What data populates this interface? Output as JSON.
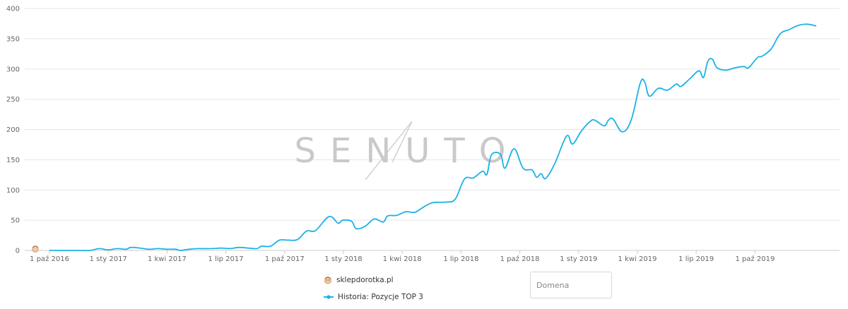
{
  "chart_data": {
    "type": "line",
    "title": "",
    "xlabel": "",
    "ylabel": "",
    "ylim": [
      0,
      400
    ],
    "yticks": [
      0,
      50,
      100,
      150,
      200,
      250,
      300,
      350,
      400
    ],
    "xticks": [
      "1 paź 2016",
      "1 sty 2017",
      "1 kwi 2017",
      "1 lip 2017",
      "1 paź 2017",
      "1 sty 2018",
      "1 kwi 2018",
      "1 lip 2018",
      "1 paź 2018",
      "1 sty 2019",
      "1 kwi 2019",
      "1 lip 2019",
      "1 paź 2019"
    ],
    "xtick_dates": [
      "2016-10-01",
      "2017-01-01",
      "2017-04-01",
      "2017-07-01",
      "2017-10-01",
      "2018-01-01",
      "2018-04-01",
      "2018-07-01",
      "2018-10-01",
      "2019-01-01",
      "2019-04-01",
      "2019-07-01",
      "2019-10-01"
    ],
    "grid": true,
    "legend_placement": "bottom-center",
    "series": [
      {
        "name": "Historia: Pozycje TOP 3",
        "color": "#1ab2e8",
        "points": [
          [
            "2016-10-01",
            0
          ],
          [
            "2016-10-22",
            0
          ],
          [
            "2016-11-12",
            0
          ],
          [
            "2016-12-03",
            0
          ],
          [
            "2016-12-17",
            3
          ],
          [
            "2016-12-31",
            1
          ],
          [
            "2017-01-14",
            3
          ],
          [
            "2017-01-28",
            2
          ],
          [
            "2017-02-04",
            5
          ],
          [
            "2017-02-18",
            4
          ],
          [
            "2017-03-04",
            2
          ],
          [
            "2017-03-18",
            3
          ],
          [
            "2017-04-01",
            2
          ],
          [
            "2017-04-15",
            2
          ],
          [
            "2017-04-22",
            0
          ],
          [
            "2017-05-06",
            2
          ],
          [
            "2017-05-20",
            3
          ],
          [
            "2017-06-10",
            3
          ],
          [
            "2017-06-24",
            4
          ],
          [
            "2017-07-08",
            3
          ],
          [
            "2017-07-22",
            5
          ],
          [
            "2017-08-05",
            4
          ],
          [
            "2017-08-19",
            3
          ],
          [
            "2017-08-26",
            7
          ],
          [
            "2017-09-09",
            7
          ],
          [
            "2017-09-23",
            17
          ],
          [
            "2017-10-07",
            17
          ],
          [
            "2017-10-21",
            18
          ],
          [
            "2017-11-04",
            32
          ],
          [
            "2017-11-18",
            33
          ],
          [
            "2017-12-09",
            56
          ],
          [
            "2017-12-23",
            45
          ],
          [
            "2017-12-30",
            50
          ],
          [
            "2018-01-13",
            48
          ],
          [
            "2018-01-20",
            36
          ],
          [
            "2018-02-03",
            40
          ],
          [
            "2018-02-17",
            52
          ],
          [
            "2018-03-03",
            47
          ],
          [
            "2018-03-10",
            57
          ],
          [
            "2018-03-24",
            58
          ],
          [
            "2018-04-07",
            64
          ],
          [
            "2018-04-21",
            63
          ],
          [
            "2018-05-05",
            72
          ],
          [
            "2018-05-19",
            79
          ],
          [
            "2018-06-09",
            80
          ],
          [
            "2018-06-23",
            85
          ],
          [
            "2018-07-07",
            118
          ],
          [
            "2018-07-21",
            120
          ],
          [
            "2018-08-04",
            131
          ],
          [
            "2018-08-11",
            126
          ],
          [
            "2018-08-18",
            158
          ],
          [
            "2018-09-01",
            159
          ],
          [
            "2018-09-08",
            136
          ],
          [
            "2018-09-22",
            168
          ],
          [
            "2018-10-06",
            136
          ],
          [
            "2018-10-20",
            133
          ],
          [
            "2018-10-27",
            121
          ],
          [
            "2018-11-03",
            127
          ],
          [
            "2018-11-10",
            119
          ],
          [
            "2018-11-24",
            143
          ],
          [
            "2018-12-08",
            180
          ],
          [
            "2018-12-15",
            190
          ],
          [
            "2018-12-22",
            176
          ],
          [
            "2019-01-05",
            198
          ],
          [
            "2019-01-19",
            214
          ],
          [
            "2019-01-26",
            215
          ],
          [
            "2019-02-09",
            206
          ],
          [
            "2019-02-16",
            216
          ],
          [
            "2019-02-23",
            217
          ],
          [
            "2019-03-09",
            196
          ],
          [
            "2019-03-23",
            216
          ],
          [
            "2019-04-06",
            277
          ],
          [
            "2019-04-13",
            278
          ],
          [
            "2019-04-20",
            255
          ],
          [
            "2019-05-04",
            268
          ],
          [
            "2019-05-18",
            265
          ],
          [
            "2019-06-01",
            275
          ],
          [
            "2019-06-08",
            271
          ],
          [
            "2019-06-22",
            284
          ],
          [
            "2019-07-06",
            297
          ],
          [
            "2019-07-13",
            286
          ],
          [
            "2019-07-20",
            313
          ],
          [
            "2019-07-27",
            316
          ],
          [
            "2019-08-03",
            302
          ],
          [
            "2019-08-17",
            298
          ],
          [
            "2019-08-31",
            302
          ],
          [
            "2019-09-14",
            304
          ],
          [
            "2019-09-21",
            302
          ],
          [
            "2019-10-05",
            319
          ],
          [
            "2019-10-12",
            321
          ],
          [
            "2019-10-26",
            333
          ],
          [
            "2019-11-09",
            358
          ],
          [
            "2019-11-23",
            365
          ],
          [
            "2019-12-07",
            372
          ],
          [
            "2019-12-21",
            374
          ],
          [
            "2020-01-04",
            371
          ]
        ]
      }
    ],
    "markers": [
      {
        "name": "sklepdorotka.pl",
        "date": "2016-10-01",
        "value": 0
      }
    ]
  },
  "legend": {
    "domain_label": "sklepdorotka.pl",
    "series_label": "Historia: Pozycje TOP 3",
    "series_color": "#1ab2e8"
  },
  "watermark": {
    "text": "SENUTO"
  },
  "domain_input": {
    "placeholder": "Domena",
    "value": ""
  },
  "colors": {
    "grid": "#e6e6e6",
    "axis": "#cccccc",
    "line": "#1ab2e8",
    "watermark": "#c9c9c9"
  }
}
